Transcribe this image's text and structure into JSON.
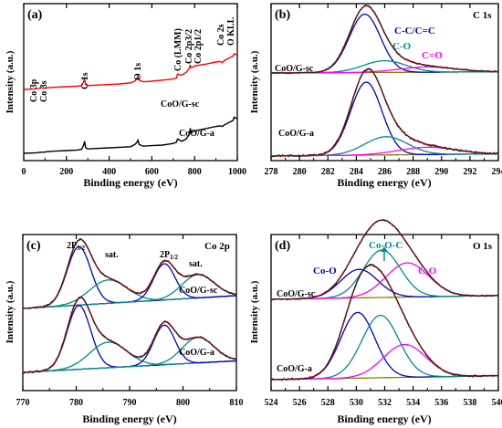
{
  "chart_data": [
    {
      "panel": "(a)",
      "type": "line",
      "xlabel": "Binding energy (eV)",
      "ylabel": "Intensity (a.u.)",
      "xlim": [
        0,
        1000
      ],
      "xticks": [
        0,
        200,
        400,
        600,
        800,
        1000
      ],
      "series": [
        {
          "name": "CoO/G-sc",
          "color": "#ff0000",
          "x": [
            0,
            60,
            80,
            95,
            110,
            150,
            200,
            250,
            270,
            280,
            285,
            290,
            300,
            350,
            400,
            450,
            500,
            520,
            530,
            535,
            540,
            560,
            600,
            650,
            700,
            715,
            720,
            740,
            760,
            775,
            780,
            782,
            795,
            800,
            850,
            900,
            920,
            930,
            940,
            960,
            980,
            985,
            1000
          ],
          "y": [
            0.67,
            0.68,
            0.7,
            0.69,
            0.7,
            0.71,
            0.72,
            0.73,
            0.74,
            0.8,
            0.86,
            0.76,
            0.74,
            0.75,
            0.76,
            0.77,
            0.79,
            0.82,
            0.87,
            0.92,
            0.84,
            0.81,
            0.82,
            0.84,
            0.86,
            0.88,
            0.95,
            0.93,
            0.98,
            1.05,
            1.12,
            1.07,
            1.08,
            1.1,
            1.13,
            1.17,
            1.18,
            1.16,
            1.2,
            1.24,
            1.28,
            1.32,
            1.3
          ]
        },
        {
          "name": "CoO/G-a",
          "color": "#000000",
          "x": [
            0,
            60,
            80,
            95,
            110,
            150,
            200,
            250,
            270,
            280,
            285,
            290,
            300,
            350,
            400,
            450,
            500,
            520,
            530,
            535,
            540,
            560,
            600,
            650,
            700,
            715,
            720,
            740,
            760,
            775,
            780,
            782,
            795,
            800,
            850,
            900,
            920,
            930,
            940,
            960,
            980,
            985,
            1000
          ],
          "y": [
            0.0,
            0.01,
            0.02,
            0.02,
            0.03,
            0.04,
            0.05,
            0.06,
            0.07,
            0.14,
            0.22,
            0.1,
            0.08,
            0.09,
            0.1,
            0.11,
            0.12,
            0.16,
            0.2,
            0.24,
            0.16,
            0.13,
            0.14,
            0.15,
            0.18,
            0.2,
            0.26,
            0.22,
            0.26,
            0.34,
            0.46,
            0.38,
            0.4,
            0.41,
            0.45,
            0.49,
            0.5,
            0.49,
            0.52,
            0.56,
            0.6,
            0.66,
            0.63
          ]
        }
      ],
      "annotations": [
        "Co 3p",
        "Co 3s",
        "C 1s",
        "O 1s",
        "Co (LMM)",
        "Co 2p3/2",
        "Co 2p1/2",
        "Co 2s",
        "O KLL"
      ]
    },
    {
      "panel": "(b)",
      "type": "line",
      "title": "C 1s",
      "xlabel": "Binding energy (eV)",
      "ylabel": "Intensity (a.u.)",
      "xlim": [
        278,
        294
      ],
      "xticks": [
        278,
        280,
        282,
        284,
        286,
        288,
        290,
        292,
        294
      ],
      "samples": [
        {
          "name": "CoO/G-sc",
          "components": [
            {
              "label": "C-C/C=C",
              "center": 284.6,
              "height": 1.0,
              "width": 1.1,
              "color": "#0000cc"
            },
            {
              "label": "C-O",
              "center": 286.0,
              "height": 0.2,
              "width": 1.5,
              "color": "#008b8b"
            },
            {
              "label": "C=O",
              "center": 289.0,
              "height": 0.09,
              "width": 2.0,
              "color": "#ff00ff"
            }
          ]
        },
        {
          "name": "CoO/G-a",
          "components": [
            {
              "label": "C-C/C=C",
              "center": 284.7,
              "height": 1.0,
              "width": 1.1,
              "color": "#0000cc"
            },
            {
              "label": "C-O",
              "center": 286.1,
              "height": 0.25,
              "width": 1.5,
              "color": "#008b8b"
            },
            {
              "label": "C=O",
              "center": 289.0,
              "height": 0.1,
              "width": 2.0,
              "color": "#ff00ff"
            }
          ]
        }
      ],
      "peak_labels": [
        "C-C/C=C",
        "C-O",
        "C=O"
      ]
    },
    {
      "panel": "(c)",
      "type": "line",
      "title": "Co 2p",
      "xlabel": "Binding energy (eV)",
      "ylabel": "Intensity (a.u.)",
      "xlim": [
        770,
        810
      ],
      "xticks": [
        770,
        780,
        790,
        800,
        810
      ],
      "samples": [
        {
          "name": "CoO/G-sc",
          "components": [
            {
              "label": "2P3/2",
              "center": 780.5,
              "height": 1.0,
              "width": 2.2,
              "color": "#0000cc"
            },
            {
              "label": "sat.",
              "center": 786.0,
              "height": 0.4,
              "width": 3.5,
              "color": "#008b8b"
            },
            {
              "label": "2P1/2",
              "center": 796.5,
              "height": 0.62,
              "width": 2.0,
              "color": "#0000cc"
            },
            {
              "label": "sat.",
              "center": 802.8,
              "height": 0.4,
              "width": 3.0,
              "color": "#008b8b"
            }
          ]
        },
        {
          "name": "CoO/G-a",
          "components": [
            {
              "label": "2P3/2",
              "center": 780.5,
              "height": 1.0,
              "width": 2.2,
              "color": "#0000cc"
            },
            {
              "label": "sat.",
              "center": 786.0,
              "height": 0.4,
              "width": 3.5,
              "color": "#008b8b"
            },
            {
              "label": "2P1/2",
              "center": 796.5,
              "height": 0.62,
              "width": 2.0,
              "color": "#0000cc"
            },
            {
              "label": "sat.",
              "center": 802.8,
              "height": 0.4,
              "width": 3.0,
              "color": "#008b8b"
            }
          ]
        }
      ],
      "peak_labels": [
        "2P",
        "3/2",
        "sat.",
        "2P",
        "1/2",
        "sat."
      ]
    },
    {
      "panel": "(d)",
      "type": "line",
      "title": "O 1s",
      "xlabel": "Binding energy (eV)",
      "ylabel": "Intensity (a.u.)",
      "xlim": [
        524,
        540
      ],
      "xticks": [
        524,
        526,
        528,
        530,
        532,
        534,
        536,
        538,
        540
      ],
      "samples": [
        {
          "name": "CoO/G-sc",
          "components": [
            {
              "label": "Co-O",
              "center": 530.2,
              "height": 0.6,
              "width": 1.3,
              "color": "#0000cc"
            },
            {
              "label": "Co-O-C",
              "center": 531.8,
              "height": 1.0,
              "width": 1.3,
              "color": "#008b8b"
            },
            {
              "label": "C-O",
              "center": 533.6,
              "height": 0.72,
              "width": 1.5,
              "color": "#ff00ff"
            }
          ]
        },
        {
          "name": "CoO/G-a",
          "components": [
            {
              "label": "Co-O",
              "center": 530.1,
              "height": 1.0,
              "width": 1.2,
              "color": "#0000cc"
            },
            {
              "label": "Co-O-C",
              "center": 531.7,
              "height": 0.95,
              "width": 1.3,
              "color": "#008b8b"
            },
            {
              "label": "C-O",
              "center": 533.4,
              "height": 0.5,
              "width": 1.5,
              "color": "#ff00ff"
            }
          ]
        }
      ],
      "peak_labels": [
        "Co-O",
        "Co-O-C",
        "C-O"
      ]
    }
  ]
}
